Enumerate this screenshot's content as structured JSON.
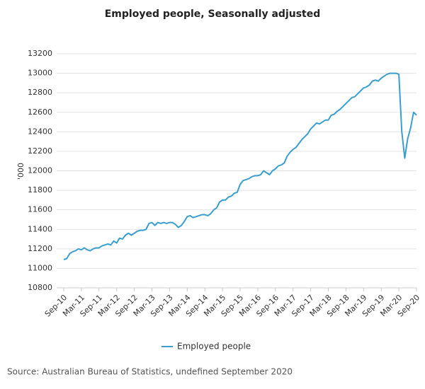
{
  "chart_data": {
    "type": "line",
    "title": "Employed people, Seasonally adjusted",
    "y_label": "'000",
    "source": "Source: Australian Bureau of Statistics, undefined September 2020",
    "categories": [
      "Sep-10",
      null,
      null,
      null,
      null,
      null,
      "Mar-11",
      null,
      null,
      null,
      null,
      null,
      "Sep-11",
      null,
      null,
      null,
      null,
      null,
      "Mar-12",
      null,
      null,
      null,
      null,
      null,
      "Sep-12",
      null,
      null,
      null,
      null,
      null,
      "Mar-13",
      null,
      null,
      null,
      null,
      null,
      "Sep-13",
      null,
      null,
      null,
      null,
      null,
      "Mar-14",
      null,
      null,
      null,
      null,
      null,
      "Sep-14",
      null,
      null,
      null,
      null,
      null,
      "Mar-15",
      null,
      null,
      null,
      null,
      null,
      "Sep-15",
      null,
      null,
      null,
      null,
      null,
      "Mar-16",
      null,
      null,
      null,
      null,
      null,
      "Sep-16",
      null,
      null,
      null,
      null,
      null,
      "Mar-17",
      null,
      null,
      null,
      null,
      null,
      "Sep-17",
      null,
      null,
      null,
      null,
      null,
      "Mar-18",
      null,
      null,
      null,
      null,
      null,
      "Sep-18",
      null,
      null,
      null,
      null,
      null,
      "Mar-19",
      null,
      null,
      null,
      null,
      null,
      "Sep-19",
      null,
      null,
      null,
      null,
      null,
      "Mar-20",
      null,
      null,
      null,
      null,
      null,
      "Sep-20"
    ],
    "series": [
      {
        "name": "Employed people",
        "color": "#3a9fd0",
        "values": [
          11090,
          11100,
          11150,
          11170,
          11180,
          11200,
          11190,
          11210,
          11190,
          11180,
          11200,
          11210,
          11210,
          11230,
          11240,
          11250,
          11240,
          11280,
          11260,
          11310,
          11300,
          11340,
          11360,
          11340,
          11360,
          11380,
          11390,
          11390,
          11400,
          11460,
          11470,
          11440,
          11470,
          11460,
          11470,
          11460,
          11470,
          11470,
          11450,
          11420,
          11440,
          11480,
          11530,
          11540,
          11520,
          11530,
          11540,
          11550,
          11550,
          11540,
          11560,
          11600,
          11620,
          11680,
          11700,
          11700,
          11730,
          11740,
          11770,
          11780,
          11860,
          11900,
          11910,
          11920,
          11940,
          11950,
          11950,
          11960,
          12000,
          11980,
          11960,
          12000,
          12020,
          12050,
          12060,
          12080,
          12150,
          12190,
          12220,
          12240,
          12280,
          12320,
          12350,
          12380,
          12430,
          12460,
          12490,
          12480,
          12500,
          12520,
          12520,
          12570,
          12580,
          12610,
          12630,
          12660,
          12690,
          12720,
          12750,
          12760,
          12790,
          12820,
          12850,
          12860,
          12880,
          12920,
          12930,
          12920,
          12950,
          12970,
          12990,
          13000,
          13000,
          13000,
          12990,
          12400,
          12130,
          12330,
          12440,
          12600,
          12570
        ]
      }
    ],
    "ylim": [
      10800,
      13200
    ],
    "yticks": [
      10800,
      11000,
      11200,
      11400,
      11600,
      11800,
      12000,
      12200,
      12400,
      12600,
      12800,
      13000,
      13200
    ],
    "grid": true,
    "legend": "bottom"
  }
}
